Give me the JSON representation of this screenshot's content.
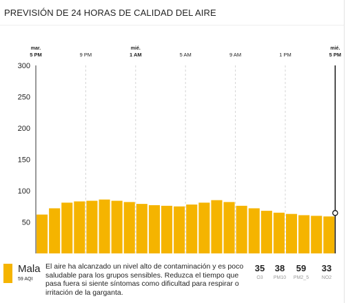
{
  "header": {
    "title": "PREVISIÓN DE 24 HORAS DE CALIDAD DEL AIRE"
  },
  "chart_data": {
    "type": "bar",
    "title": "PREVISIÓN DE 24 HORAS DE CALIDAD DEL AIRE",
    "xlabel": "",
    "ylabel": "",
    "ylim": [
      0,
      300
    ],
    "yticks": [
      50,
      100,
      150,
      200,
      250,
      300
    ],
    "grid": "vertical-dashed",
    "x_ticks": [
      {
        "day": "mar.",
        "time": "5 PM",
        "bold": true,
        "index": 0
      },
      {
        "day": "",
        "time": "9 PM",
        "bold": false,
        "index": 4
      },
      {
        "day": "mié.",
        "time": "1 AM",
        "bold": true,
        "index": 8
      },
      {
        "day": "",
        "time": "5 AM",
        "bold": false,
        "index": 12
      },
      {
        "day": "",
        "time": "9 AM",
        "bold": false,
        "index": 16
      },
      {
        "day": "",
        "time": "1 PM",
        "bold": false,
        "index": 20
      },
      {
        "day": "mié.",
        "time": "5 PM",
        "bold": true,
        "index": 24
      }
    ],
    "bar_color": "#f5b400",
    "values": [
      62,
      72,
      81,
      83,
      84,
      86,
      84,
      82,
      79,
      77,
      76,
      75,
      78,
      81,
      85,
      82,
      76,
      72,
      68,
      65,
      63,
      61,
      60,
      59
    ],
    "current_index": 24
  },
  "category": {
    "name": "Mala",
    "aqi_label": "59 AQI",
    "color": "#f5b400",
    "description": "El aire ha alcanzado un nivel alto de contaminación y es poco saludable para los grupos sensibles. Reduzca el tiempo que pasa fuera si siente síntomas como dificultad para respirar o irritación de la garganta."
  },
  "pollutants": [
    {
      "value": "35",
      "name": "O3"
    },
    {
      "value": "38",
      "name": "PM10"
    },
    {
      "value": "59",
      "name": "PM2_5"
    },
    {
      "value": "33",
      "name": "NO2"
    }
  ]
}
